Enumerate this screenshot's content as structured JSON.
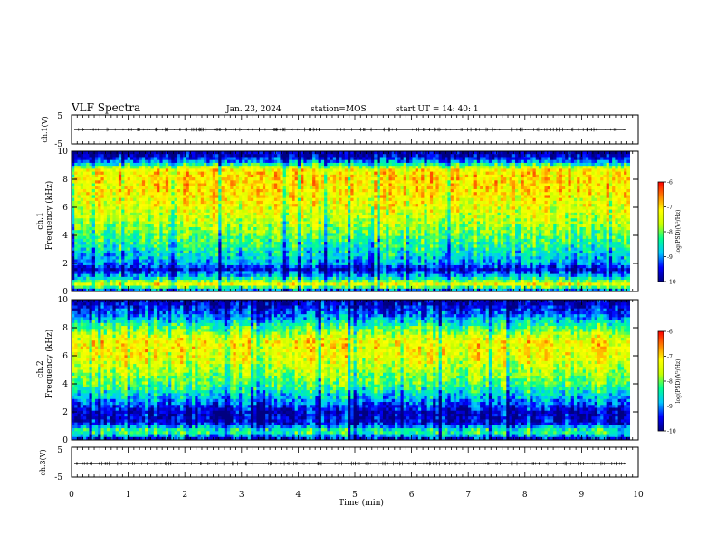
{
  "header": {
    "title": "VLF Spectra",
    "date": "Jan. 23, 2024",
    "station": "station=MOS",
    "start": "start UT =  14: 40: 1"
  },
  "colors": {
    "scale": [
      "#000080",
      "#0000ff",
      "#00c8ff",
      "#00ff90",
      "#c8ff00",
      "#ffff00",
      "#ff8000",
      "#ff0000",
      "#ffffff"
    ],
    "trace": "#000000"
  },
  "chart_data": [
    {
      "type": "line",
      "id": "ch1",
      "ylabel": "ch.1(V)",
      "ylim": [
        -5,
        5
      ],
      "yticks": [
        "5",
        "-5"
      ],
      "level": 0,
      "note": "near-flat waveform trace"
    },
    {
      "type": "heatmap",
      "id": "ch1-spec",
      "ylabel_top": "ch.1",
      "ylabel": "Frequency (kHz)",
      "ylim": [
        0,
        10
      ],
      "yticks": [
        "0",
        "2",
        "4",
        "6",
        "8",
        "10"
      ],
      "colorbar": {
        "label": "log(PSD)(V²/Hz)",
        "range": [
          -10,
          -6
        ],
        "ticks": [
          "-6",
          "-7",
          "-8",
          "-9",
          "-10"
        ]
      },
      "profile": [
        {
          "f": 0.0,
          "v": -9.4
        },
        {
          "f": 0.5,
          "v": -7.2
        },
        {
          "f": 1.0,
          "v": -8.6
        },
        {
          "f": 1.6,
          "v": -9.6
        },
        {
          "f": 2.0,
          "v": -8.9
        },
        {
          "f": 3.0,
          "v": -8.4
        },
        {
          "f": 4.0,
          "v": -8.0
        },
        {
          "f": 5.0,
          "v": -7.6
        },
        {
          "f": 6.0,
          "v": -7.3
        },
        {
          "f": 7.0,
          "v": -7.1
        },
        {
          "f": 8.0,
          "v": -7.0
        },
        {
          "f": 8.7,
          "v": -7.1
        },
        {
          "f": 9.2,
          "v": -8.8
        },
        {
          "f": 9.6,
          "v": -9.6
        },
        {
          "f": 10.0,
          "v": -9.9
        }
      ]
    },
    {
      "type": "heatmap",
      "id": "ch2-spec",
      "ylabel_top": "ch.2",
      "ylabel": "Frequency (kHz)",
      "ylim": [
        0,
        10
      ],
      "yticks": [
        "0",
        "2",
        "4",
        "6",
        "8",
        "10"
      ],
      "colorbar": {
        "label": "log(PSD)(V²/Hz)",
        "range": [
          -10,
          -6
        ],
        "ticks": [
          "-6",
          "-7",
          "-8",
          "-9",
          "-10"
        ]
      },
      "profile": [
        {
          "f": 0.0,
          "v": -9.6
        },
        {
          "f": 0.6,
          "v": -8.0
        },
        {
          "f": 1.2,
          "v": -9.5
        },
        {
          "f": 2.0,
          "v": -9.6
        },
        {
          "f": 3.0,
          "v": -8.7
        },
        {
          "f": 4.0,
          "v": -8.0
        },
        {
          "f": 5.0,
          "v": -7.6
        },
        {
          "f": 6.0,
          "v": -7.2
        },
        {
          "f": 7.0,
          "v": -7.1
        },
        {
          "f": 8.0,
          "v": -8.0
        },
        {
          "f": 9.0,
          "v": -9.1
        },
        {
          "f": 10.0,
          "v": -9.8
        }
      ]
    },
    {
      "type": "line",
      "id": "ch3",
      "ylabel": "ch.3(V)",
      "ylim": [
        -5,
        5
      ],
      "yticks": [
        "5",
        "-5"
      ],
      "level": 0,
      "note": "near-flat waveform trace"
    }
  ],
  "xaxis": {
    "label": "Time (min)",
    "xlim": [
      0,
      10
    ],
    "ticks": [
      "0",
      "1",
      "2",
      "3",
      "4",
      "5",
      "6",
      "7",
      "8",
      "9",
      "10"
    ],
    "data_end": 9.85
  }
}
